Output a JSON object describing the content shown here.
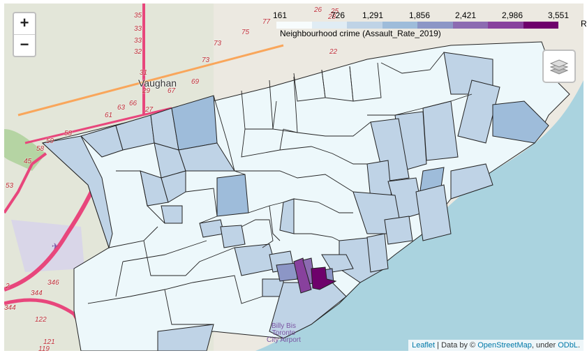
{
  "map": {
    "place_labels": [
      {
        "id": "vaughan",
        "text": "Vaughan"
      }
    ],
    "airport_labels": [
      {
        "id": "billy-bishop",
        "lines": [
          "Billy Bis",
          "Toronto",
          "City Airport"
        ]
      }
    ],
    "highway_shields": [
      "35",
      "33",
      "33",
      "32",
      "31",
      "29",
      "27",
      "26",
      "28",
      "25",
      "77",
      "75",
      "73",
      "73",
      "69",
      "67",
      "66",
      "63",
      "61",
      "58",
      "59",
      "58",
      "45",
      "53",
      "22",
      "346",
      "344",
      "344",
      "122",
      "121",
      "119",
      "2"
    ]
  },
  "zoom": {
    "in_label": "+",
    "out_label": "−"
  },
  "legend": {
    "title": "Neighbourhood crime (Assault_Rate_2019)",
    "ticks": [
      "161",
      "726",
      "1,291",
      "1,856",
      "2,421",
      "2,986",
      "3,551"
    ],
    "colors": [
      "#f7fcfd",
      "#e0ecf4",
      "#bfd3e6",
      "#9ebcda",
      "#8c96c6",
      "#8c6bb1",
      "#88419d",
      "#6e016b"
    ],
    "extra_label": "R"
  },
  "attribution": {
    "leaflet": "Leaflet",
    "separator": " | Data by © ",
    "osm": "OpenStreetMap",
    "under": ", under ",
    "odbl": "ODbL",
    "end": "."
  }
}
